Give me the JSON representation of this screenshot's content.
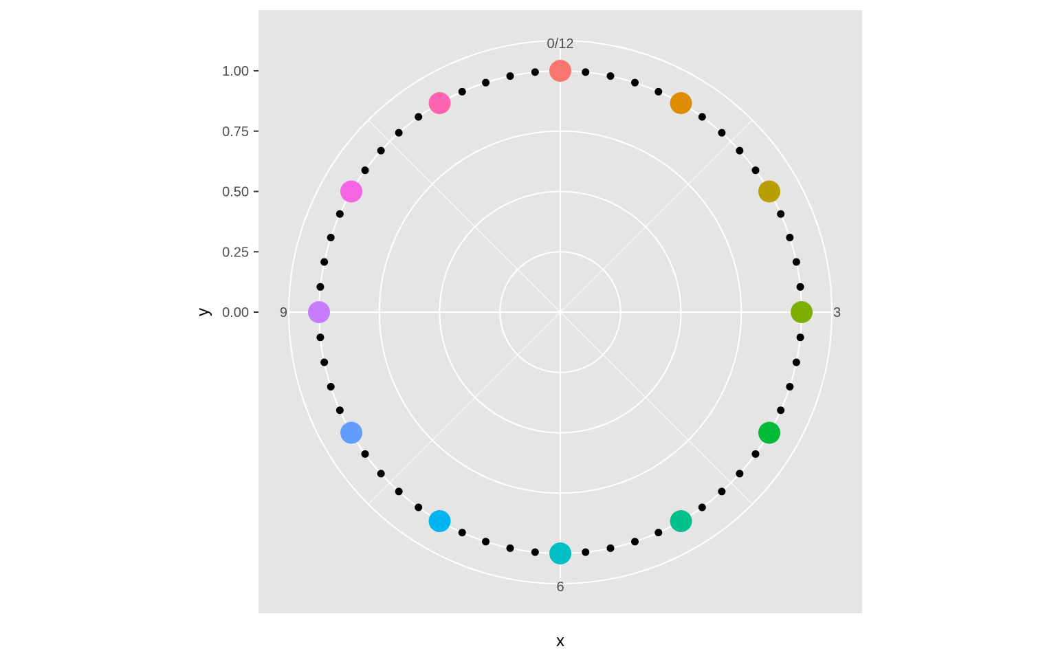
{
  "chart_data": {
    "type": "scatter",
    "coord": "polar",
    "xlabel": "x",
    "ylabel": "y",
    "ylim": [
      0,
      1
    ],
    "y_ticks": [
      {
        "value": 1.0,
        "label": "1.00"
      },
      {
        "value": 0.75,
        "label": "0.75"
      },
      {
        "value": 0.5,
        "label": "0.50"
      },
      {
        "value": 0.25,
        "label": "0.25"
      },
      {
        "value": 0.0,
        "label": "0.00"
      }
    ],
    "theta_range": [
      0,
      12
    ],
    "theta_ticks": [
      {
        "value": 0,
        "label": "0/12"
      },
      {
        "value": 3,
        "label": "3"
      },
      {
        "value": 6,
        "label": "6"
      },
      {
        "value": 9,
        "label": "9"
      }
    ],
    "theta_minor_ticks": [
      1.5,
      4.5,
      7.5,
      10.5
    ],
    "grid": true,
    "legend": "none",
    "background": "#e5e5e5",
    "grid_color": "#ffffff",
    "hours": {
      "x": [
        0,
        1,
        2,
        3,
        4,
        5,
        6,
        7,
        8,
        9,
        10,
        11
      ],
      "y": [
        1,
        1,
        1,
        1,
        1,
        1,
        1,
        1,
        1,
        1,
        1,
        1
      ],
      "colors": [
        "#F8766D",
        "#DE8C00",
        "#B79F00",
        "#7CAE00",
        "#00BA38",
        "#00C08B",
        "#00BFC4",
        "#00B4F0",
        "#619CFF",
        "#C77CFF",
        "#F564E3",
        "#FF64B0"
      ]
    },
    "minutes": {
      "x": [
        0.2,
        0.4,
        0.6,
        0.8,
        1.2,
        1.4,
        1.6,
        1.8,
        2.2,
        2.4,
        2.6,
        2.8,
        3.2,
        3.4,
        3.6,
        3.8,
        4.2,
        4.4,
        4.6,
        4.8,
        5.2,
        5.4,
        5.6,
        5.8,
        6.2,
        6.4,
        6.6,
        6.8,
        7.2,
        7.4,
        7.6,
        7.8,
        8.2,
        8.4,
        8.6,
        8.8,
        9.2,
        9.4,
        9.6,
        9.8,
        10.2,
        10.4,
        10.6,
        10.8,
        11.2,
        11.4,
        11.6,
        11.8
      ],
      "y": 1,
      "color": "#000000"
    }
  }
}
